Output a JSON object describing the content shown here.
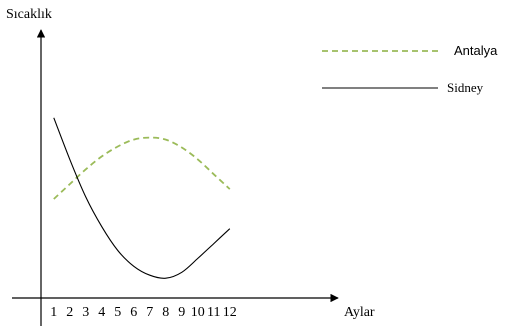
{
  "chart_data": {
    "type": "line",
    "title": "",
    "xlabel": "Aylar",
    "ylabel": "Sıcaklık",
    "x_tick_labels": [
      "1",
      "2",
      "3",
      "4",
      "5",
      "6",
      "7",
      "8",
      "9",
      "10",
      "11",
      "12"
    ],
    "x": [
      1,
      2,
      3,
      4,
      5,
      6,
      7,
      8,
      9,
      10,
      11,
      12
    ],
    "grid": false,
    "legend_position": "top-right",
    "series": [
      {
        "name": "Antalya",
        "style": "dashed",
        "color": "#9bbb59",
        "values": [
          10,
          11.5,
          13,
          14.3,
          15.3,
          16,
          16.2,
          16,
          15.2,
          14,
          12.5,
          11
        ]
      },
      {
        "name": "Sidney",
        "style": "solid",
        "color": "#000000",
        "values": [
          18.2,
          14,
          10.2,
          7.2,
          4.8,
          3.2,
          2.3,
          2,
          2.6,
          4,
          5.5,
          7
        ]
      }
    ]
  }
}
